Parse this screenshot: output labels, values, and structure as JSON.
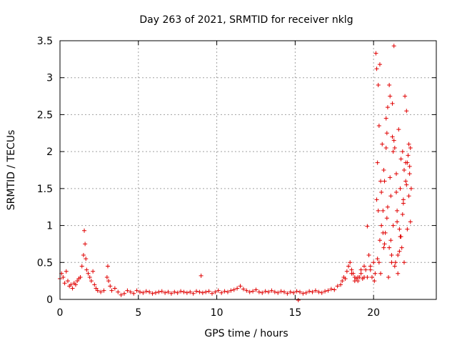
{
  "chart_data": {
    "type": "scatter",
    "title": "Day 263 of 2021, SRMTID for receiver nklg",
    "xlabel": "GPS time / hours",
    "ylabel": "SRMTID / TECUs",
    "xlim": [
      0,
      24
    ],
    "ylim": [
      0,
      3.5
    ],
    "xticks": [
      0,
      5,
      10,
      15,
      20
    ],
    "xtick_labels": [
      "0",
      "5",
      "10",
      "15",
      "20"
    ],
    "yticks": [
      0,
      0.5,
      1,
      1.5,
      2,
      2.5,
      3,
      3.5
    ],
    "ytick_labels": [
      "0",
      "0.5",
      "1",
      "1.5",
      "2",
      "2.5",
      "3",
      "3.5"
    ],
    "grid": true,
    "marker": "plus",
    "series": [
      {
        "name": "SRMTID",
        "color": "#e00000",
        "x": [
          0.0,
          0.1,
          0.2,
          0.3,
          0.4,
          0.5,
          0.6,
          0.7,
          0.8,
          0.9,
          1.0,
          1.1,
          1.2,
          1.3,
          1.4,
          1.5,
          1.55,
          1.6,
          1.65,
          1.7,
          1.8,
          1.9,
          2.0,
          2.1,
          2.2,
          2.3,
          2.4,
          2.6,
          2.8,
          3.0,
          3.05,
          3.1,
          3.2,
          3.3,
          3.5,
          3.7,
          3.9,
          4.1,
          4.3,
          4.5,
          4.7,
          4.9,
          5.1,
          5.3,
          5.5,
          5.7,
          5.9,
          6.1,
          6.3,
          6.5,
          6.7,
          6.9,
          7.1,
          7.3,
          7.5,
          7.7,
          7.9,
          8.1,
          8.3,
          8.5,
          8.7,
          8.9,
          9.0,
          9.1,
          9.3,
          9.5,
          9.7,
          9.9,
          10.1,
          10.3,
          10.5,
          10.7,
          10.9,
          11.1,
          11.3,
          11.5,
          11.7,
          11.9,
          12.1,
          12.3,
          12.5,
          12.7,
          12.9,
          13.1,
          13.3,
          13.5,
          13.7,
          13.9,
          14.1,
          14.3,
          14.5,
          14.7,
          14.9,
          15.1,
          15.2,
          15.3,
          15.5,
          15.7,
          15.9,
          16.1,
          16.3,
          16.5,
          16.7,
          16.9,
          17.1,
          17.3,
          17.5,
          17.7,
          17.9,
          18.0,
          18.1,
          18.2,
          18.3,
          18.4,
          18.5,
          18.6,
          18.7,
          18.8,
          18.9,
          19.0,
          19.1,
          19.2,
          19.3,
          19.4,
          19.5,
          19.6,
          19.7,
          19.8,
          19.9,
          20.0,
          20.05,
          20.1,
          20.15,
          20.2,
          20.25,
          20.3,
          20.35,
          20.4,
          20.45,
          20.5,
          20.55,
          20.6,
          20.65,
          20.7,
          20.75,
          20.8,
          20.85,
          20.9,
          20.95,
          21.0,
          21.05,
          21.1,
          21.15,
          21.2,
          21.25,
          21.3,
          21.35,
          21.4,
          21.45,
          21.5,
          21.55,
          21.6,
          21.65,
          21.7,
          21.75,
          21.8,
          21.85,
          21.9,
          21.95,
          22.0,
          22.05,
          22.1,
          22.15,
          22.2,
          22.25,
          22.3,
          22.35,
          22.4,
          20.2,
          20.25,
          21.1,
          21.15,
          21.0,
          21.2,
          20.3,
          20.4,
          20.6,
          20.8,
          21.3,
          21.5,
          21.7,
          21.9,
          22.1,
          22.3,
          20.35,
          20.5,
          20.7,
          20.9,
          21.05,
          21.25,
          21.45,
          21.65,
          21.85,
          22.05,
          22.25,
          20.45,
          20.65,
          20.85,
          21.35,
          21.55,
          21.75,
          21.95,
          22.15,
          22.35,
          19.8,
          19.6,
          19.4,
          19.2,
          19.0,
          18.8,
          18.6
        ],
        "y": [
          0.28,
          0.35,
          0.3,
          0.22,
          0.38,
          0.25,
          0.18,
          0.2,
          0.15,
          0.22,
          0.2,
          0.25,
          0.28,
          0.3,
          0.45,
          0.6,
          0.93,
          0.75,
          0.55,
          0.4,
          0.35,
          0.3,
          0.25,
          0.38,
          0.2,
          0.15,
          0.12,
          0.1,
          0.12,
          0.3,
          0.45,
          0.25,
          0.18,
          0.12,
          0.15,
          0.1,
          0.06,
          0.08,
          0.12,
          0.1,
          0.08,
          0.12,
          0.1,
          0.09,
          0.11,
          0.1,
          0.08,
          0.09,
          0.1,
          0.11,
          0.09,
          0.1,
          0.08,
          0.1,
          0.09,
          0.11,
          0.1,
          0.09,
          0.1,
          0.08,
          0.11,
          0.1,
          0.32,
          0.09,
          0.1,
          0.11,
          0.08,
          0.1,
          0.12,
          0.09,
          0.11,
          0.1,
          0.12,
          0.13,
          0.15,
          0.18,
          0.14,
          0.12,
          0.1,
          0.11,
          0.13,
          0.1,
          0.09,
          0.11,
          0.1,
          0.12,
          0.1,
          0.09,
          0.11,
          0.1,
          0.08,
          0.1,
          0.09,
          0.11,
          -0.01,
          0.1,
          0.08,
          0.09,
          0.11,
          0.1,
          0.12,
          0.1,
          0.09,
          0.11,
          0.12,
          0.14,
          0.13,
          0.18,
          0.2,
          0.25,
          0.3,
          0.28,
          0.38,
          0.45,
          0.5,
          0.4,
          0.35,
          0.3,
          0.28,
          0.25,
          0.3,
          0.35,
          0.28,
          0.3,
          0.4,
          0.99,
          0.6,
          0.45,
          0.3,
          0.5,
          0.25,
          0.35,
          3.33,
          3.12,
          1.85,
          1.2,
          0.5,
          0.8,
          0.35,
          1.45,
          2.1,
          1.2,
          0.7,
          1.6,
          0.9,
          2.45,
          1.1,
          2.6,
          0.3,
          2.9,
          2.75,
          1.4,
          0.5,
          2.2,
          1.0,
          3.43,
          2.05,
          0.5,
          1.7,
          1.2,
          0.6,
          2.3,
          0.95,
          1.5,
          1.9,
          0.7,
          2.0,
          1.35,
          1.75,
          2.75,
          1.6,
          2.55,
          1.85,
          1.95,
          2.1,
          1.7,
          2.05,
          1.5,
          1.35,
          0.55,
          0.8,
          0.6,
          0.7,
          2.65,
          2.9,
          3.18,
          0.9,
          2.05,
          2.15,
          1.05,
          0.85,
          1.3,
          1.55,
          1.8,
          2.35,
          1.0,
          0.75,
          1.25,
          1.65,
          2.0,
          1.45,
          0.65,
          1.15,
          1.85,
          1.4,
          1.6,
          1.75,
          2.25,
          0.45,
          0.35,
          0.85,
          0.5,
          0.95,
          1.05,
          0.4,
          0.3,
          0.45,
          0.4,
          0.3,
          0.25,
          0.35
        ]
      }
    ]
  }
}
